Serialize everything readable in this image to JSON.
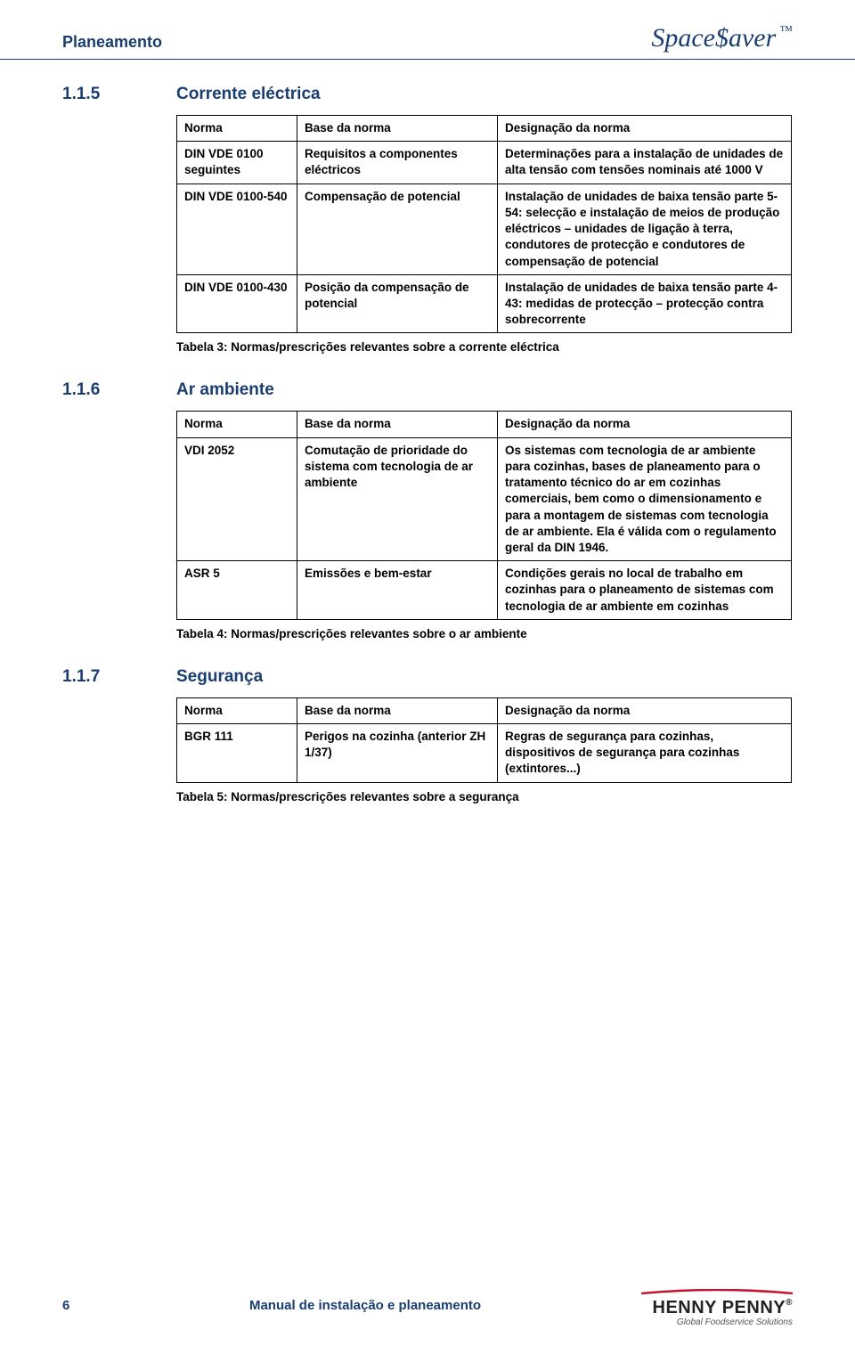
{
  "header": {
    "left": "Planeamento",
    "right_brand": "Space$aver",
    "tm": "™"
  },
  "sections": [
    {
      "num": "1.1.5",
      "title": "Corrente eléctrica",
      "table": {
        "cols": [
          "Norma",
          "Base da norma",
          "Designação da norma"
        ],
        "widths": [
          135,
          225,
          330
        ],
        "rows": [
          [
            "DIN VDE 0100 seguintes",
            "Requisitos a componentes eléctricos",
            "Determinações para a instalação de unidades de alta tensão com tensões nominais até 1000 V"
          ],
          [
            "DIN VDE 0100-540",
            "Compensação de potencial",
            "Instalação de unidades de baixa tensão parte 5-54: selecção e instalação de meios de produção eléctricos – unidades de ligação à terra, condutores de protecção e condutores de compensação de potencial"
          ],
          [
            "DIN VDE 0100-430",
            "Posição da compensação de potencial",
            "Instalação de unidades de baixa tensão parte 4-43: medidas de protecção – protecção contra sobrecorrente"
          ]
        ]
      },
      "caption": "Tabela 3: Normas/prescrições relevantes sobre a corrente eléctrica"
    },
    {
      "num": "1.1.6",
      "title": "Ar ambiente",
      "table": {
        "cols": [
          "Norma",
          "Base da norma",
          "Designação da norma"
        ],
        "widths": [
          135,
          225,
          330
        ],
        "rows": [
          [
            "VDI 2052",
            "Comutação de prioridade do sistema com tecnologia de ar ambiente",
            "Os sistemas com tecnologia de ar ambiente para cozinhas, bases de planeamento para o tratamento técnico do ar em cozinhas comerciais, bem como o dimensionamento e para a montagem de sistemas com tecnologia de ar ambiente. Ela é válida com o regulamento geral da DIN 1946."
          ],
          [
            "ASR 5",
            "Emissões e bem-estar",
            "Condições gerais no local de trabalho em cozinhas para o planeamento de sistemas com tecnologia de ar ambiente em cozinhas"
          ]
        ]
      },
      "caption": "Tabela 4: Normas/prescrições relevantes sobre o ar ambiente"
    },
    {
      "num": "1.1.7",
      "title": "Segurança",
      "table": {
        "cols": [
          "Norma",
          "Base da norma",
          "Designação da norma"
        ],
        "widths": [
          135,
          225,
          330
        ],
        "rows": [
          [
            "BGR 111",
            "Perigos na cozinha (anterior ZH 1/37)",
            "Regras de segurança para cozinhas, dispositivos de segurança para cozinhas (extintores...)"
          ]
        ]
      },
      "caption": "Tabela 5: Normas/prescrições relevantes sobre a segurança"
    }
  ],
  "footer": {
    "page": "6",
    "title": "Manual de instalação e planeamento",
    "logo_main": "HENNY PENNY",
    "logo_reg": "®",
    "logo_sub": "Global Foodservice Solutions"
  }
}
